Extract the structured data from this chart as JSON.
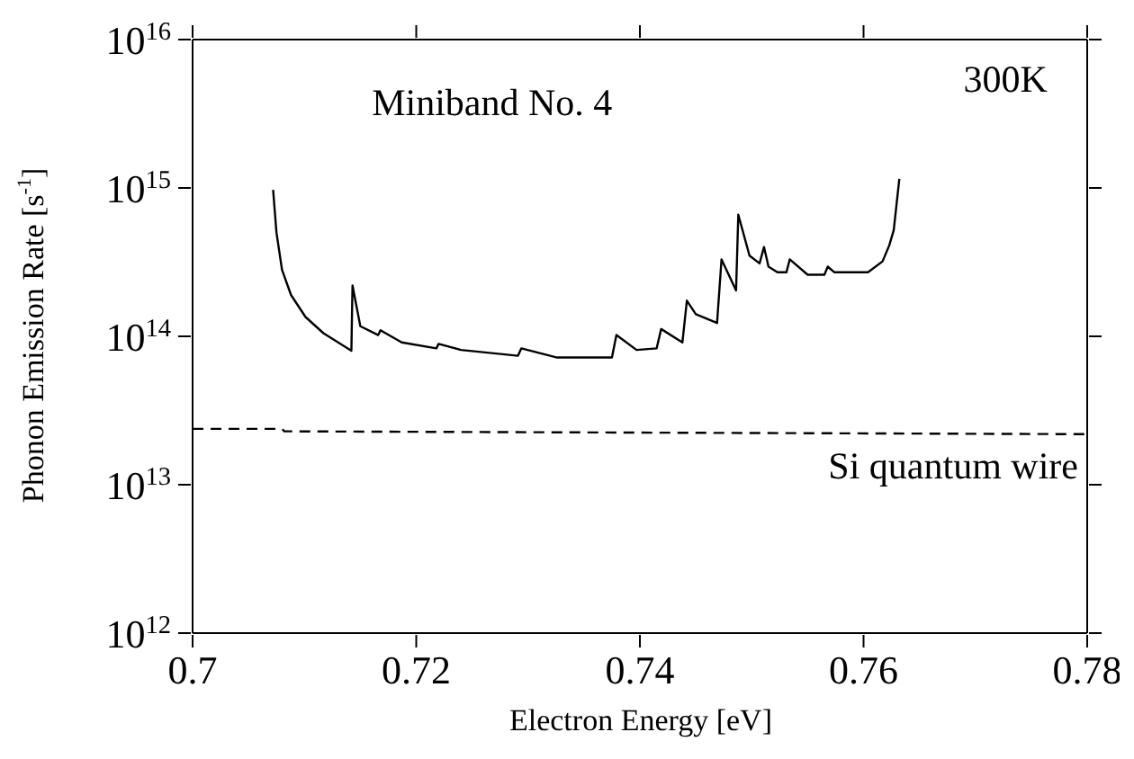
{
  "chart_data": {
    "type": "line",
    "xlabel": "Electron Energy [eV]",
    "ylabel": "Phonon Emission Rate [s$^{-1}$]",
    "log": "y",
    "xlim": [
      0.7,
      0.78
    ],
    "xticks": [
      0.7,
      0.72,
      0.74,
      0.76,
      0.78
    ],
    "ylim": [
      1000000000000.0,
      1e+16
    ],
    "yticks": [
      {
        "value": 1000000000000.0,
        "label": "10$^{12}$"
      },
      {
        "value": 10000000000000.0,
        "label": "10$^{13}$"
      },
      {
        "value": 100000000000000.0,
        "label": "10$^{14}$"
      },
      {
        "value": 1000000000000000.0,
        "label": "10$^{15}$"
      },
      {
        "value": 1e+16,
        "label": "10$^{16}$"
      }
    ],
    "marker": "none",
    "annotations": [
      "Miniband No. 4",
      "300K"
    ],
    "series": [
      {
        "color": "#000000",
        "line_style": "solid",
        "x": [
          0.7072,
          0.7075,
          0.708,
          0.7088,
          0.7101,
          0.7117,
          0.7142,
          0.7143,
          0.715,
          0.7166,
          0.7168,
          0.7187,
          0.7218,
          0.722,
          0.724,
          0.7291,
          0.7294,
          0.7326,
          0.7375,
          0.7379,
          0.7397,
          0.7415,
          0.7419,
          0.7438,
          0.7442,
          0.745,
          0.7469,
          0.7473,
          0.7486,
          0.7488,
          0.7498,
          0.7507,
          0.7511,
          0.7515,
          0.7523,
          0.7531,
          0.7534,
          0.755,
          0.7565,
          0.7568,
          0.7574,
          0.7604,
          0.7617,
          0.7623,
          0.7627,
          0.7632
        ],
        "values": [
          970000000000000.0,
          500000000000000.0,
          280000000000000.0,
          190000000000000.0,
          135000000000000.0,
          105000000000000.0,
          80000000000000.0,
          220000000000000.0,
          117000000000000.0,
          102000000000000.0,
          110000000000000.0,
          91000000000000.0,
          83000000000000.0,
          89000000000000.0,
          81000000000000.0,
          74000000000000.0,
          83000000000000.0,
          72000000000000.0,
          72000000000000.0,
          102000000000000.0,
          81000000000000.0,
          83000000000000.0,
          112000000000000.0,
          91000000000000.0,
          174000000000000.0,
          141000000000000.0,
          123000000000000.0,
          330000000000000.0,
          204000000000000.0,
          660000000000000.0,
          350000000000000.0,
          310000000000000.0,
          400000000000000.0,
          295000000000000.0,
          270000000000000.0,
          270000000000000.0,
          330000000000000.0,
          260000000000000.0,
          260000000000000.0,
          295000000000000.0,
          270000000000000.0,
          270000000000000.0,
          320000000000000.0,
          410000000000000.0,
          520000000000000.0,
          1150000000000000.0
        ]
      },
      {
        "name": "Si quantum wire",
        "color": "#000000",
        "line_style": "dashed",
        "x": [
          0.7,
          0.708,
          0.7082,
          0.78
        ],
        "values": [
          23800000000000.0,
          23800000000000.0,
          22900000000000.0,
          21900000000000.0
        ]
      }
    ]
  }
}
